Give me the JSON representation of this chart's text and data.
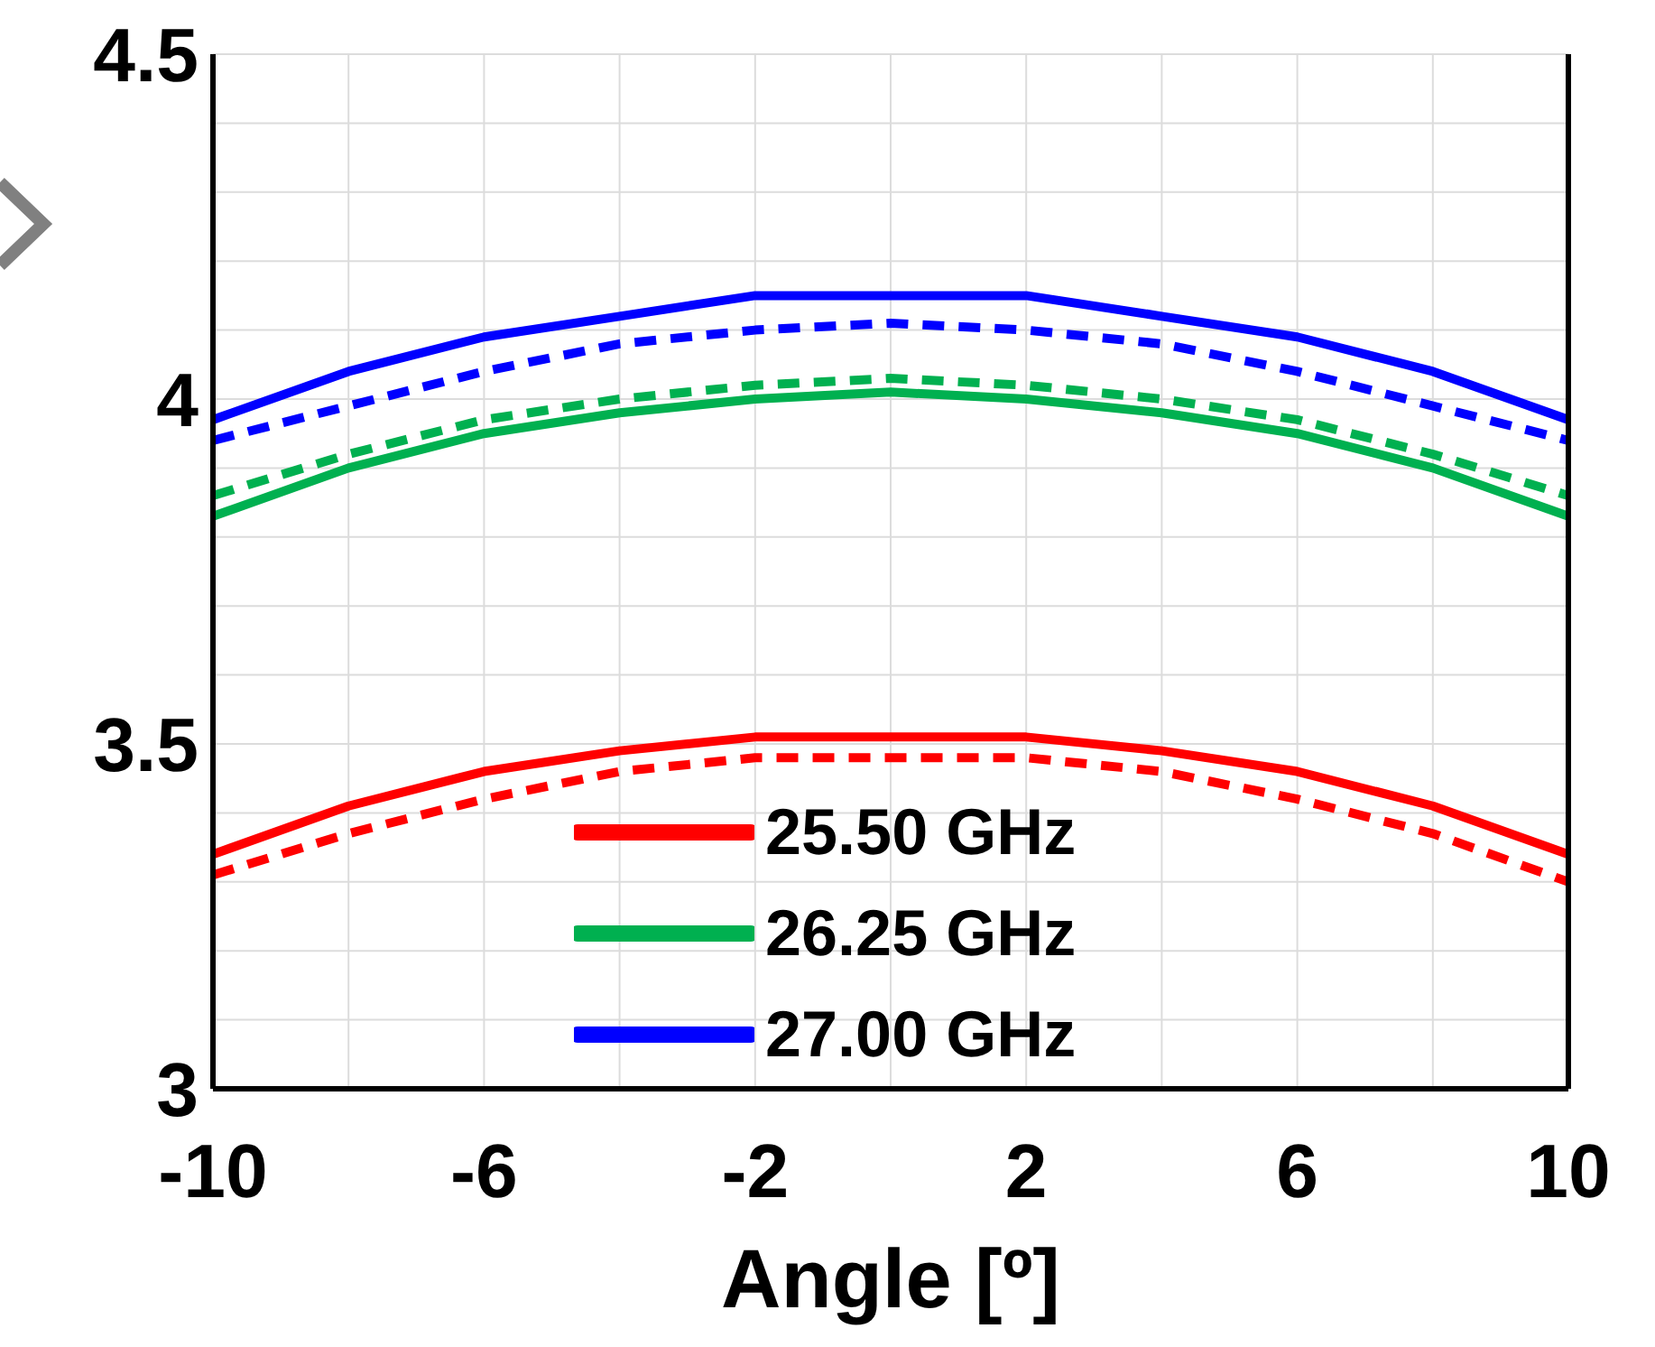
{
  "chart_data": {
    "type": "line",
    "xlabel": "Angle [º]",
    "x": [
      -10,
      -8,
      -6,
      -4,
      -2,
      0,
      2,
      4,
      6,
      8,
      10
    ],
    "xlim": [
      -10,
      10
    ],
    "xticks": [
      -10,
      {
        "value": -8,
        "label": null
      },
      -6,
      {
        "value": -4,
        "label": null
      },
      -2,
      {
        "value": 0,
        "label": null
      },
      2,
      {
        "value": 4,
        "label": null
      },
      6,
      {
        "value": 8,
        "label": null
      },
      10
    ],
    "ylim": [
      3,
      4.5
    ],
    "yticks": [
      3,
      {
        "value": 3.1,
        "label": null
      },
      {
        "value": 3.2,
        "label": null
      },
      {
        "value": 3.3,
        "label": null
      },
      {
        "value": 3.4,
        "label": null
      },
      3.5,
      {
        "value": 3.6,
        "label": null
      },
      {
        "value": 3.7,
        "label": null
      },
      {
        "value": 3.8,
        "label": null
      },
      {
        "value": 3.9,
        "label": null
      },
      4,
      {
        "value": 4.1,
        "label": null
      },
      {
        "value": 4.2,
        "label": null
      },
      {
        "value": 4.3,
        "label": null
      },
      {
        "value": 4.4,
        "label": null
      },
      4.5
    ],
    "grid": true,
    "legend": "bottom",
    "marker": "none",
    "series": [
      {
        "name": "25.50 GHz",
        "color": "#ff0000",
        "line_style": "solid",
        "values": [
          3.34,
          3.41,
          3.46,
          3.49,
          3.51,
          3.51,
          3.51,
          3.49,
          3.46,
          3.41,
          3.34
        ]
      },
      {
        "name": "26.25 GHz",
        "color": "#00b050",
        "line_style": "solid",
        "values": [
          3.83,
          3.9,
          3.95,
          3.98,
          4.0,
          4.01,
          4.0,
          3.98,
          3.95,
          3.9,
          3.83
        ]
      },
      {
        "name": "27.00 GHz",
        "color": "#0000ff",
        "line_style": "solid",
        "values": [
          3.97,
          4.04,
          4.09,
          4.12,
          4.15,
          4.15,
          4.15,
          4.12,
          4.09,
          4.04,
          3.97
        ]
      },
      {
        "color": "#ff0000",
        "line_style": "dashed",
        "values": [
          3.31,
          3.37,
          3.42,
          3.46,
          3.48,
          3.48,
          3.48,
          3.46,
          3.42,
          3.37,
          3.3
        ]
      },
      {
        "color": "#00b050",
        "line_style": "dashed",
        "values": [
          3.86,
          3.92,
          3.97,
          4.0,
          4.02,
          4.03,
          4.02,
          4.0,
          3.97,
          3.92,
          3.86
        ]
      },
      {
        "color": "#0000ff",
        "line_style": "dashed",
        "values": [
          3.94,
          3.99,
          4.04,
          4.08,
          4.1,
          4.11,
          4.1,
          4.08,
          4.04,
          3.99,
          3.94
        ]
      }
    ]
  }
}
